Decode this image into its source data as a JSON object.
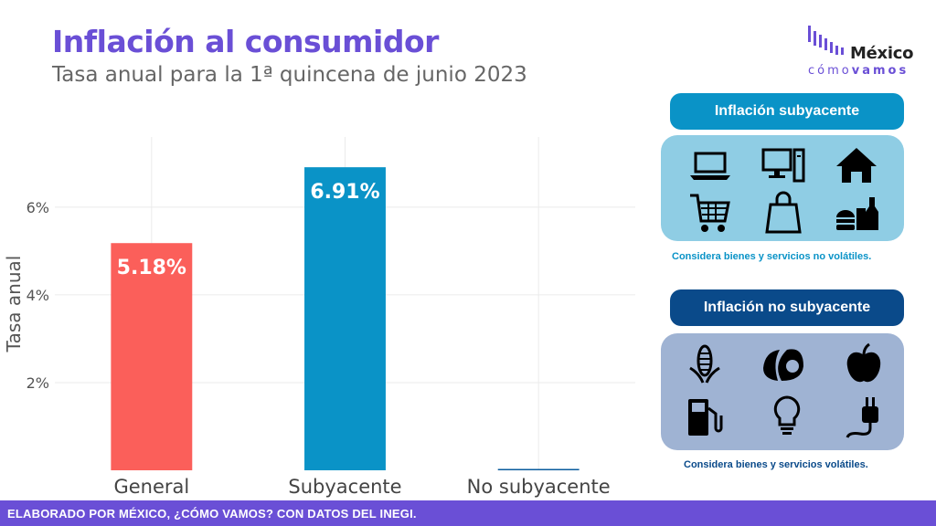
{
  "header": {
    "title": "Inflación al consumidor",
    "subtitle": "Tasa anual para la 1ª quincena de junio 2023"
  },
  "logo": {
    "word_top": "México",
    "word_bottom_light": "cómo",
    "word_bottom_bold": "vamos"
  },
  "chart_data": {
    "type": "bar",
    "categories": [
      "General",
      "Subyacente",
      "No subyacente"
    ],
    "values": [
      5.18,
      6.91,
      0.0
    ],
    "value_labels": [
      "5.18%",
      "6.91%",
      ""
    ],
    "colors": [
      "#fb5f5a",
      "#0a93c7",
      "#0a5c9e"
    ],
    "ylabel": "Tasa anual",
    "yticks": [
      2,
      4,
      6
    ],
    "ytick_labels": [
      "2%",
      "4%",
      "6%"
    ],
    "ylim": [
      0,
      7.6
    ],
    "grid": true
  },
  "panels": {
    "core": {
      "title": "Inflación subyacente",
      "note": "Considera bienes y servicios no volátiles.",
      "color": "#0a93c7",
      "box_color": "#8fcde4",
      "icons": [
        "laptop-icon",
        "desktop-computer-icon",
        "house-icon",
        "shopping-cart-icon",
        "shopping-bag-icon",
        "food-and-drinks-icon"
      ]
    },
    "noncore": {
      "title": "Inflación no subyacente",
      "note": "Considera bienes y servicios volátiles.",
      "color": "#0a4a8a",
      "box_color": "#9fb3d3",
      "icons": [
        "corn-icon",
        "avocado-icon",
        "apple-icon",
        "gas-pump-icon",
        "light-bulb-icon",
        "electric-plug-icon"
      ]
    }
  },
  "footer": {
    "text": "ELABORADO POR MÉXICO, ¿CÓMO VAMOS? CON DATOS DEL INEGI."
  }
}
